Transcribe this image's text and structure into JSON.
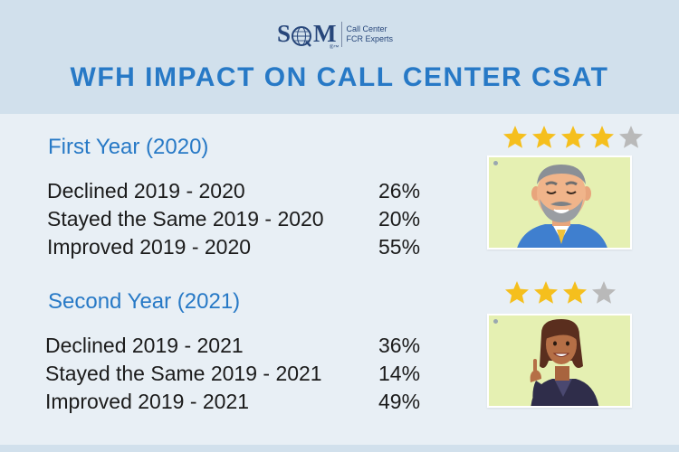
{
  "brand": {
    "logo_text": "SQM",
    "tm": "®™",
    "tagline_line1": "Call Center",
    "tagline_line2": "FCR Experts"
  },
  "title": "WFH IMPACT ON CALL CENTER CSAT",
  "sections": [
    {
      "heading": "First Year (2020)",
      "rows": [
        {
          "label": "Declined 2019 - 2020",
          "value": "26%"
        },
        {
          "label": "Stayed the Same 2019 - 2020",
          "value": "20%"
        },
        {
          "label": "Improved 2019 - 2020",
          "value": "55%"
        }
      ],
      "rating": 4,
      "rating_max": 5,
      "avatar": "bearded-man-icon"
    },
    {
      "heading": "Second Year (2021)",
      "rows": [
        {
          "label": "Declined 2019 - 2021",
          "value": "36%"
        },
        {
          "label": "Stayed the Same 2019 - 2021",
          "value": "14%"
        },
        {
          "label": "Improved 2019 - 2021",
          "value": "49%"
        }
      ],
      "rating": 3,
      "rating_max": 4,
      "avatar": "woman-pointing-icon"
    }
  ],
  "colors": {
    "title": "#2779c6",
    "star_filled": "#f5bf1d",
    "star_empty": "#b9b9b9",
    "card_bg": "#e5f0b2",
    "header_bg": "#d1e0ec",
    "body_bg": "#e8eff5"
  }
}
